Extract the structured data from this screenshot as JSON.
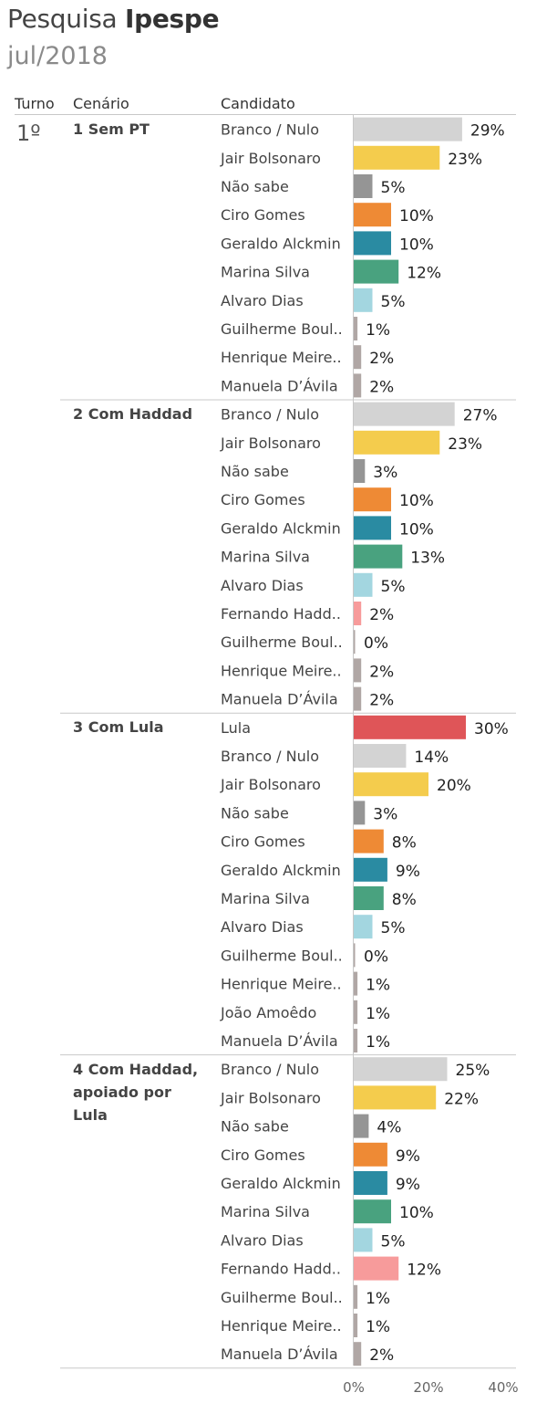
{
  "header": {
    "title_prefix": "Pesquisa",
    "title_bold": "Ipespe",
    "subtitle": "jul/2018",
    "col_turno": "Turno",
    "col_cenario": "Cenário",
    "col_candidato": "Candidato",
    "turno_value": "1º"
  },
  "colors": {
    "Branco / Nulo": "#d3d3d3",
    "Jair Bolsonaro": "#f4cc4d",
    "Não sabe": "#959595",
    "Ciro Gomes": "#ee8a35",
    "Geraldo Alckmin": "#2a8ba2",
    "Marina Silva": "#49a27f",
    "Alvaro Dias": "#a3d6e0",
    "Guilherme Boulos": "#b0a7a5",
    "Henrique Meirelles": "#b0a7a5",
    "Manuela D’Ávila": "#b0a7a5",
    "Fernando Haddad": "#f79b9b",
    "Lula": "#df5558",
    "João Amoêdo": "#b0a7a5"
  },
  "chart_data": {
    "type": "bar",
    "orientation": "horizontal",
    "title": "Pesquisa Ipespe",
    "subtitle": "jul/2018",
    "turno": "1º",
    "xlim": [
      0,
      45
    ],
    "xticks": [
      "0%",
      "20%",
      "40%"
    ],
    "xtick_values": [
      0,
      20,
      40
    ],
    "scenarios": [
      {
        "name": "1 Sem PT",
        "rows": [
          {
            "candidate": "Branco / Nulo",
            "label": "Branco / Nulo",
            "value": 29
          },
          {
            "candidate": "Jair Bolsonaro",
            "label": "Jair Bolsonaro",
            "value": 23
          },
          {
            "candidate": "Não sabe",
            "label": "Não sabe",
            "value": 5
          },
          {
            "candidate": "Ciro Gomes",
            "label": "Ciro Gomes",
            "value": 10
          },
          {
            "candidate": "Geraldo Alckmin",
            "label": "Geraldo Alckmin",
            "value": 10
          },
          {
            "candidate": "Marina Silva",
            "label": "Marina Silva",
            "value": 12
          },
          {
            "candidate": "Alvaro Dias",
            "label": "Alvaro Dias",
            "value": 5
          },
          {
            "candidate": "Guilherme Boulos",
            "label": "Guilherme Boul..",
            "value": 1
          },
          {
            "candidate": "Henrique Meirelles",
            "label": "Henrique Meire..",
            "value": 2
          },
          {
            "candidate": "Manuela D’Ávila",
            "label": "Manuela D’Ávila",
            "value": 2
          }
        ]
      },
      {
        "name": "2 Com Haddad",
        "rows": [
          {
            "candidate": "Branco / Nulo",
            "label": "Branco / Nulo",
            "value": 27
          },
          {
            "candidate": "Jair Bolsonaro",
            "label": "Jair Bolsonaro",
            "value": 23
          },
          {
            "candidate": "Não sabe",
            "label": "Não sabe",
            "value": 3
          },
          {
            "candidate": "Ciro Gomes",
            "label": "Ciro Gomes",
            "value": 10
          },
          {
            "candidate": "Geraldo Alckmin",
            "label": "Geraldo Alckmin",
            "value": 10
          },
          {
            "candidate": "Marina Silva",
            "label": "Marina Silva",
            "value": 13
          },
          {
            "candidate": "Alvaro Dias",
            "label": "Alvaro Dias",
            "value": 5
          },
          {
            "candidate": "Fernando Haddad",
            "label": "Fernando Hadd..",
            "value": 2
          },
          {
            "candidate": "Guilherme Boulos",
            "label": "Guilherme Boul..",
            "value": 0
          },
          {
            "candidate": "Henrique Meirelles",
            "label": "Henrique Meire..",
            "value": 2
          },
          {
            "candidate": "Manuela D’Ávila",
            "label": "Manuela D’Ávila",
            "value": 2
          }
        ]
      },
      {
        "name": "3 Com Lula",
        "rows": [
          {
            "candidate": "Lula",
            "label": "Lula",
            "value": 30
          },
          {
            "candidate": "Branco / Nulo",
            "label": "Branco / Nulo",
            "value": 14
          },
          {
            "candidate": "Jair Bolsonaro",
            "label": "Jair Bolsonaro",
            "value": 20
          },
          {
            "candidate": "Não sabe",
            "label": "Não sabe",
            "value": 3
          },
          {
            "candidate": "Ciro Gomes",
            "label": "Ciro Gomes",
            "value": 8
          },
          {
            "candidate": "Geraldo Alckmin",
            "label": "Geraldo Alckmin",
            "value": 9
          },
          {
            "candidate": "Marina Silva",
            "label": "Marina Silva",
            "value": 8
          },
          {
            "candidate": "Alvaro Dias",
            "label": "Alvaro Dias",
            "value": 5
          },
          {
            "candidate": "Guilherme Boulos",
            "label": "Guilherme Boul..",
            "value": 0
          },
          {
            "candidate": "Henrique Meirelles",
            "label": "Henrique Meire..",
            "value": 1
          },
          {
            "candidate": "João Amoêdo",
            "label": "João Amoêdo",
            "value": 1
          },
          {
            "candidate": "Manuela D’Ávila",
            "label": "Manuela D’Ávila",
            "value": 1
          }
        ]
      },
      {
        "name": "4 Com Haddad, apoiado por Lula",
        "rows": [
          {
            "candidate": "Branco / Nulo",
            "label": "Branco / Nulo",
            "value": 25
          },
          {
            "candidate": "Jair Bolsonaro",
            "label": "Jair Bolsonaro",
            "value": 22
          },
          {
            "candidate": "Não sabe",
            "label": "Não sabe",
            "value": 4
          },
          {
            "candidate": "Ciro Gomes",
            "label": "Ciro Gomes",
            "value": 9
          },
          {
            "candidate": "Geraldo Alckmin",
            "label": "Geraldo Alckmin",
            "value": 9
          },
          {
            "candidate": "Marina Silva",
            "label": "Marina Silva",
            "value": 10
          },
          {
            "candidate": "Alvaro Dias",
            "label": "Alvaro Dias",
            "value": 5
          },
          {
            "candidate": "Fernando Haddad",
            "label": "Fernando Hadd..",
            "value": 12
          },
          {
            "candidate": "Guilherme Boulos",
            "label": "Guilherme Boul..",
            "value": 1
          },
          {
            "candidate": "Henrique Meirelles",
            "label": "Henrique Meire..",
            "value": 1
          },
          {
            "candidate": "Manuela D’Ávila",
            "label": "Manuela D’Ávila",
            "value": 2
          }
        ]
      }
    ]
  }
}
